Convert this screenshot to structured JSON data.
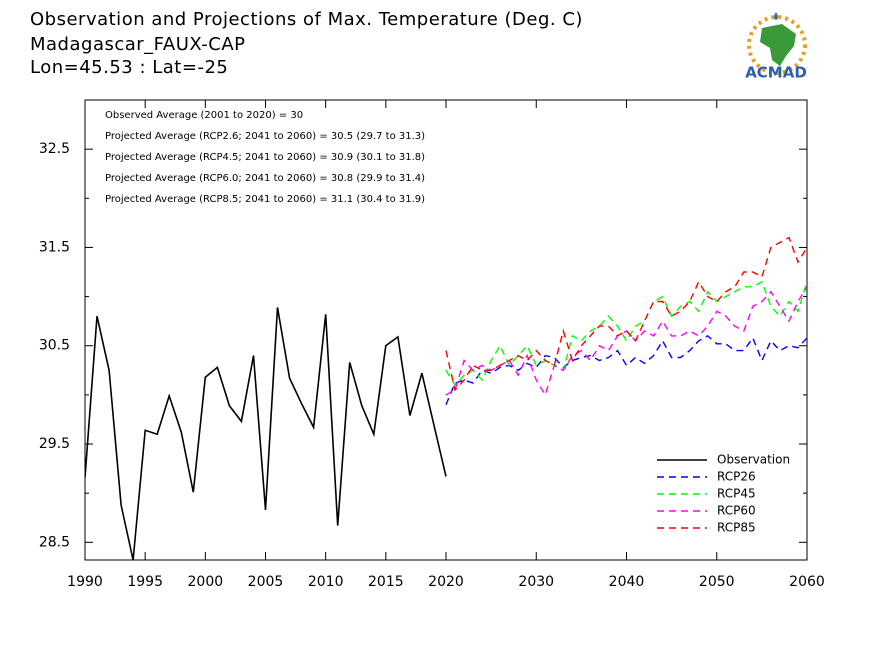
{
  "chart_data": {
    "type": "line",
    "title": [
      "Observation and Projections of Max. Temperature (Deg. C)",
      "Madagascar_FAUX-CAP",
      "Lon=45.53 : Lat=-25"
    ],
    "logo_text": "ACMAD",
    "annotations": [
      "Observed Average (2001 to 2020) = 30",
      "Projected Average (RCP2.6; 2041 to 2060) = 30.5 (29.7 to 31.3)",
      "Projected Average (RCP4.5; 2041 to 2060) = 30.9 (30.1 to 31.8)",
      "Projected Average (RCP6.0; 2041 to 2060) = 30.8 (29.9 to 31.4)",
      "Projected Average (RCP8.5; 2041 to 2060) = 31.1 (30.4 to 31.9)"
    ],
    "xlim": [
      1990,
      2060
    ],
    "xticks": [
      1990,
      1995,
      2000,
      2005,
      2010,
      2015,
      2020,
      2030,
      2040,
      2050,
      2060
    ],
    "ylim": [
      28.32,
      33
    ],
    "yticks": [
      28.5,
      29.5,
      30.5,
      31.5,
      32.5
    ],
    "yticks_minor": [
      29,
      30,
      31,
      32
    ],
    "legend": "lower right",
    "series": [
      {
        "name": "Observation",
        "color": "#000000",
        "style": "solid",
        "x": [
          1990,
          1991,
          1992,
          1993,
          1994,
          1995,
          1996,
          1997,
          1998,
          1999,
          2000,
          2001,
          2002,
          2003,
          2004,
          2005,
          2006,
          2007,
          2008,
          2009,
          2010,
          2011,
          2012,
          2013,
          2014,
          2015,
          2016,
          2017,
          2018,
          2019,
          2020
        ],
        "values": [
          29.16,
          30.8,
          30.25,
          28.88,
          28.32,
          29.64,
          29.6,
          29.99,
          29.62,
          29.01,
          30.18,
          30.28,
          29.89,
          29.73,
          30.4,
          28.83,
          30.89,
          30.17,
          29.91,
          29.67,
          30.82,
          28.67,
          30.33,
          29.89,
          29.6,
          30.5,
          30.59,
          29.79,
          30.22,
          29.69,
          29.17
        ]
      },
      {
        "name": "RCP26",
        "color": "#0000ff",
        "style": "dashed",
        "x": [
          2020,
          2021,
          2022,
          2023,
          2024,
          2025,
          2026,
          2027,
          2028,
          2029,
          2030,
          2031,
          2032,
          2033,
          2034,
          2035,
          2036,
          2037,
          2038,
          2039,
          2040,
          2041,
          2042,
          2043,
          2044,
          2045,
          2046,
          2047,
          2048,
          2049,
          2050,
          2051,
          2052,
          2053,
          2054,
          2055,
          2056,
          2057,
          2058,
          2059,
          2060
        ],
        "values": [
          29.9,
          30.12,
          30.15,
          30.12,
          30.25,
          30.22,
          30.28,
          30.3,
          30.25,
          30.32,
          30.28,
          30.4,
          30.38,
          30.28,
          30.35,
          30.38,
          30.4,
          30.35,
          30.38,
          30.45,
          30.3,
          30.38,
          30.32,
          30.4,
          30.55,
          30.38,
          30.38,
          30.45,
          30.55,
          30.6,
          30.52,
          30.52,
          30.45,
          30.45,
          30.58,
          30.35,
          30.55,
          30.45,
          30.5,
          30.48,
          30.58
        ]
      },
      {
        "name": "RCP45",
        "color": "#00ff00",
        "style": "dashed",
        "x": [
          2020,
          2021,
          2022,
          2023,
          2024,
          2025,
          2026,
          2027,
          2028,
          2029,
          2030,
          2031,
          2032,
          2033,
          2034,
          2035,
          2036,
          2037,
          2038,
          2039,
          2040,
          2041,
          2042,
          2043,
          2044,
          2045,
          2046,
          2047,
          2048,
          2049,
          2050,
          2051,
          2052,
          2053,
          2054,
          2055,
          2056,
          2057,
          2058,
          2059,
          2060
        ],
        "values": [
          30.25,
          30.1,
          30.2,
          30.25,
          30.15,
          30.35,
          30.5,
          30.3,
          30.4,
          30.5,
          30.3,
          30.35,
          30.3,
          30.25,
          30.6,
          30.55,
          30.65,
          30.7,
          30.8,
          30.7,
          30.55,
          30.7,
          30.75,
          30.95,
          31.0,
          30.8,
          30.9,
          30.95,
          30.85,
          31.05,
          30.95,
          31.0,
          31.05,
          31.1,
          31.1,
          31.15,
          30.9,
          30.8,
          30.95,
          30.85,
          31.15
        ]
      },
      {
        "name": "RCP60",
        "color": "#ff00ff",
        "style": "dashed",
        "x": [
          2020,
          2021,
          2022,
          2023,
          2024,
          2025,
          2026,
          2027,
          2028,
          2029,
          2030,
          2031,
          2032,
          2033,
          2034,
          2035,
          2036,
          2037,
          2038,
          2039,
          2040,
          2041,
          2042,
          2043,
          2044,
          2045,
          2046,
          2047,
          2048,
          2049,
          2050,
          2051,
          2052,
          2053,
          2054,
          2055,
          2056,
          2057,
          2058,
          2059,
          2060
        ],
        "values": [
          30.0,
          30.05,
          30.35,
          30.25,
          30.3,
          30.25,
          30.3,
          30.35,
          30.2,
          30.4,
          30.15,
          30.0,
          30.3,
          30.25,
          30.4,
          30.45,
          30.35,
          30.5,
          30.45,
          30.6,
          30.65,
          30.55,
          30.65,
          30.6,
          30.75,
          30.6,
          30.6,
          30.65,
          30.6,
          30.7,
          30.85,
          30.8,
          30.7,
          30.65,
          30.9,
          30.95,
          31.05,
          30.9,
          30.75,
          30.95,
          31.1
        ]
      },
      {
        "name": "RCP85",
        "color": "#ff0000",
        "style": "dashed",
        "x": [
          2020,
          2021,
          2022,
          2023,
          2024,
          2025,
          2026,
          2027,
          2028,
          2029,
          2030,
          2031,
          2032,
          2033,
          2034,
          2035,
          2036,
          2037,
          2038,
          2039,
          2040,
          2041,
          2042,
          2043,
          2044,
          2045,
          2046,
          2047,
          2048,
          2049,
          2050,
          2051,
          2052,
          2053,
          2054,
          2055,
          2056,
          2057,
          2058,
          2059,
          2060
        ],
        "values": [
          30.45,
          30.05,
          30.15,
          30.3,
          30.25,
          30.25,
          30.3,
          30.35,
          30.4,
          30.35,
          30.45,
          30.35,
          30.3,
          30.65,
          30.35,
          30.5,
          30.6,
          30.7,
          30.7,
          30.6,
          30.65,
          30.55,
          30.75,
          30.95,
          30.95,
          30.8,
          30.85,
          30.95,
          31.15,
          31.0,
          30.95,
          31.05,
          31.1,
          31.25,
          31.25,
          31.2,
          31.5,
          31.55,
          31.6,
          31.35,
          31.5
        ]
      }
    ]
  }
}
